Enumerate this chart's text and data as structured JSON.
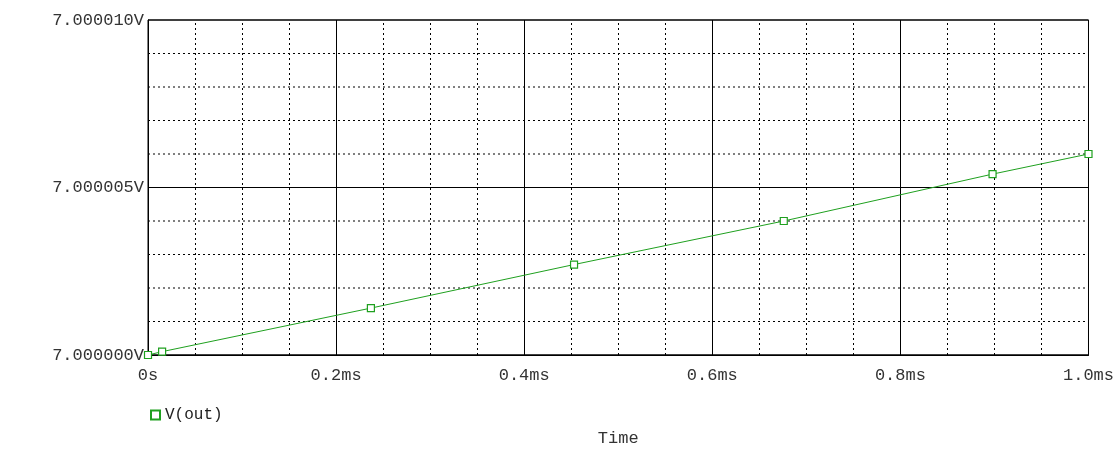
{
  "chart_data": {
    "type": "line",
    "xlabel": "Time",
    "x": [
      0,
      0.015,
      0.237,
      0.453,
      0.676,
      0.898,
      1.0
    ],
    "series": [
      {
        "name": "V(out)",
        "color": "#1fa01f",
        "values": [
          7.0,
          7.0000001,
          7.0000014,
          7.0000027,
          7.000004,
          7.0000054,
          7.000006
        ]
      }
    ],
    "xlim": [
      0,
      1.0
    ],
    "xticks": [
      {
        "value": 0,
        "label": "0s"
      },
      {
        "value": 0.05,
        "label": null
      },
      {
        "value": 0.1,
        "label": null
      },
      {
        "value": 0.15,
        "label": null
      },
      {
        "value": 0.2,
        "label": "0.2ms"
      },
      {
        "value": 0.25,
        "label": null
      },
      {
        "value": 0.3,
        "label": null
      },
      {
        "value": 0.35,
        "label": null
      },
      {
        "value": 0.4,
        "label": "0.4ms"
      },
      {
        "value": 0.45,
        "label": null
      },
      {
        "value": 0.5,
        "label": null
      },
      {
        "value": 0.55,
        "label": null
      },
      {
        "value": 0.6,
        "label": "0.6ms"
      },
      {
        "value": 0.65,
        "label": null
      },
      {
        "value": 0.7,
        "label": null
      },
      {
        "value": 0.75,
        "label": null
      },
      {
        "value": 0.8,
        "label": "0.8ms"
      },
      {
        "value": 0.85,
        "label": null
      },
      {
        "value": 0.9,
        "label": null
      },
      {
        "value": 0.95,
        "label": null
      },
      {
        "value": 1.0,
        "label": "1.0ms"
      }
    ],
    "ylim": [
      7.0,
      7.00001
    ],
    "yticks": [
      {
        "value": 7.0,
        "label": "7.000000V"
      },
      {
        "value": 7.000001,
        "label": null
      },
      {
        "value": 7.000002,
        "label": null
      },
      {
        "value": 7.000003,
        "label": null
      },
      {
        "value": 7.000004,
        "label": null
      },
      {
        "value": 7.000005,
        "label": "7.000005V"
      },
      {
        "value": 7.000006,
        "label": null
      },
      {
        "value": 7.000007,
        "label": null
      },
      {
        "value": 7.000008,
        "label": null
      },
      {
        "value": 7.000009,
        "label": null
      },
      {
        "value": 7.00001,
        "label": "7.000010V"
      }
    ],
    "grid": true,
    "legend": "bottom left",
    "marker": "square",
    "line_style": "solid"
  }
}
